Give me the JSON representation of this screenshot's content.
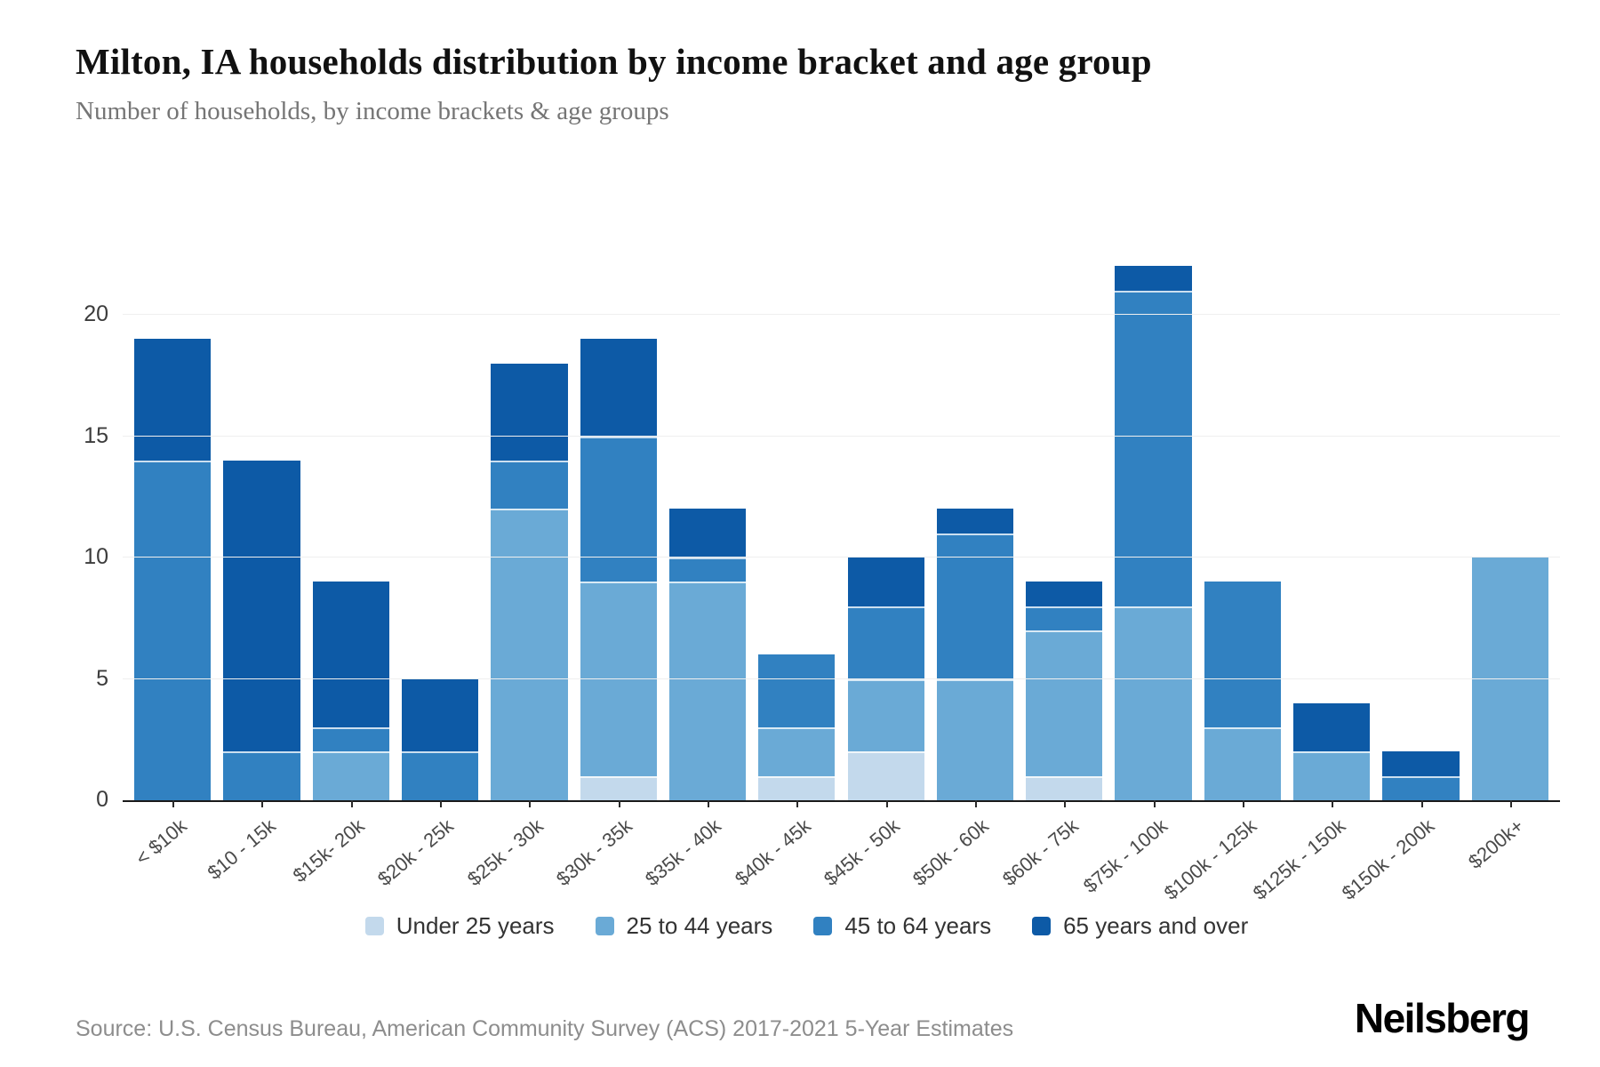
{
  "header": {
    "title": "Milton, IA households distribution by income bracket and age group",
    "subtitle": "Number of households, by income brackets & age groups"
  },
  "footer": {
    "source": "Source: U.S. Census Bureau, American Community Survey (ACS) 2017-2021 5-Year Estimates",
    "brand": "Neilsberg"
  },
  "colors": {
    "under_25": "#c3d9ec",
    "age_25_44": "#6aaad6",
    "age_45_64": "#3181c1",
    "age_65_over": "#0d5aa6",
    "axis_line": "#1a1a1a",
    "gridline": "#efefef"
  },
  "chart_data": {
    "type": "bar",
    "stacked": true,
    "categories": [
      "< $10k",
      "$10 - 15k",
      "$15k- 20k",
      "$20k - 25k",
      "$25k - 30k",
      "$30k - 35k",
      "$35k - 40k",
      "$40k - 45k",
      "$45k - 50k",
      "$50k - 60k",
      "$60k - 75k",
      "$75k - 100k",
      "$100k - 125k",
      "$125k - 150k",
      "$150k - 200k",
      "$200k+"
    ],
    "series": [
      {
        "name": "Under 25 years",
        "color": "#c3d9ec",
        "values": [
          0,
          0,
          0,
          0,
          0,
          1,
          0,
          1,
          2,
          0,
          1,
          0,
          0,
          0,
          0,
          0
        ]
      },
      {
        "name": "25 to 44 years",
        "color": "#6aaad6",
        "values": [
          0,
          0,
          2,
          0,
          12,
          8,
          9,
          2,
          3,
          5,
          6,
          8,
          3,
          2,
          0,
          10
        ]
      },
      {
        "name": "45 to 64 years",
        "color": "#3181c1",
        "values": [
          14,
          2,
          1,
          2,
          2,
          6,
          1,
          3,
          3,
          6,
          1,
          13,
          6,
          0,
          1,
          0
        ]
      },
      {
        "name": "65 years and over",
        "color": "#0d5aa6",
        "values": [
          5,
          12,
          6,
          3,
          4,
          4,
          2,
          0,
          2,
          1,
          1,
          1,
          0,
          2,
          1,
          0
        ]
      }
    ],
    "totals": [
      19,
      14,
      9,
      5,
      18,
      19,
      12,
      6,
      10,
      12,
      9,
      22,
      9,
      4,
      2,
      10
    ],
    "ylabel": "",
    "xlabel": "",
    "yticks": [
      0,
      5,
      10,
      15,
      20
    ],
    "ylim": [
      0,
      22
    ],
    "grid": true,
    "legend_position": "bottom"
  }
}
